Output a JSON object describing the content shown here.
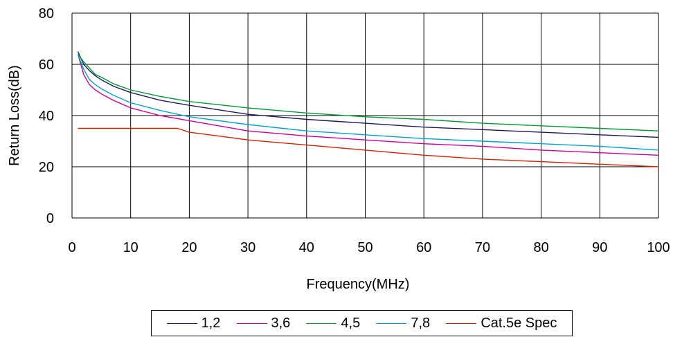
{
  "chart_data": {
    "type": "line",
    "title": "",
    "xlabel": "Frequency(MHz)",
    "ylabel": "Return Loss(dB)",
    "xlim": [
      0,
      100
    ],
    "ylim": [
      0,
      80
    ],
    "xticks": [
      "0",
      "10",
      "20",
      "30",
      "40",
      "50",
      "60",
      "70",
      "80",
      "90",
      "100"
    ],
    "yticks": [
      "0",
      "20",
      "40",
      "60",
      "80"
    ],
    "grid": true,
    "legend_position": "bottom",
    "series": [
      {
        "name": "1,2",
        "color": "#1a1a5e",
        "x": [
          1,
          2,
          3,
          4,
          5,
          7,
          10,
          15,
          20,
          30,
          40,
          50,
          60,
          70,
          80,
          90,
          100
        ],
        "y": [
          65,
          60,
          57.5,
          55.5,
          54,
          51.5,
          49,
          46,
          44,
          40.5,
          38.5,
          37,
          35.5,
          34.5,
          33.5,
          32.5,
          31.5
        ]
      },
      {
        "name": "3,6",
        "color": "#cc0099",
        "x": [
          1,
          2,
          3,
          4,
          5,
          7,
          10,
          15,
          20,
          30,
          40,
          50,
          60,
          70,
          80,
          90,
          100
        ],
        "y": [
          64,
          56,
          52,
          50,
          48.5,
          46,
          43,
          40,
          38,
          34,
          32,
          30.5,
          29,
          28,
          26.5,
          25.5,
          24.5
        ]
      },
      {
        "name": "4,5",
        "color": "#009933",
        "x": [
          1,
          2,
          3,
          4,
          5,
          7,
          10,
          15,
          20,
          30,
          40,
          50,
          60,
          70,
          80,
          90,
          100
        ],
        "y": [
          64,
          61,
          58.5,
          56,
          55,
          52.5,
          50,
          47.5,
          45.5,
          43,
          41,
          39.5,
          38.5,
          37,
          36,
          35,
          34
        ]
      },
      {
        "name": "7,8",
        "color": "#00a0cc",
        "x": [
          1,
          2,
          3,
          4,
          5,
          7,
          10,
          15,
          20,
          30,
          40,
          50,
          60,
          70,
          80,
          90,
          100
        ],
        "y": [
          64,
          58,
          54,
          52,
          50.5,
          48,
          45,
          42,
          39.5,
          36.5,
          34,
          32.5,
          31,
          30,
          29,
          28,
          26.5
        ]
      },
      {
        "name": "Cat.5e Spec",
        "color": "#cc2200",
        "x": [
          1,
          5,
          10,
          15,
          18,
          20,
          25,
          30,
          40,
          50,
          60,
          70,
          80,
          90,
          100
        ],
        "y": [
          35,
          35,
          35,
          35,
          35,
          33.5,
          32,
          30.5,
          28.5,
          26.5,
          24.5,
          23,
          22,
          21,
          20
        ]
      }
    ]
  }
}
